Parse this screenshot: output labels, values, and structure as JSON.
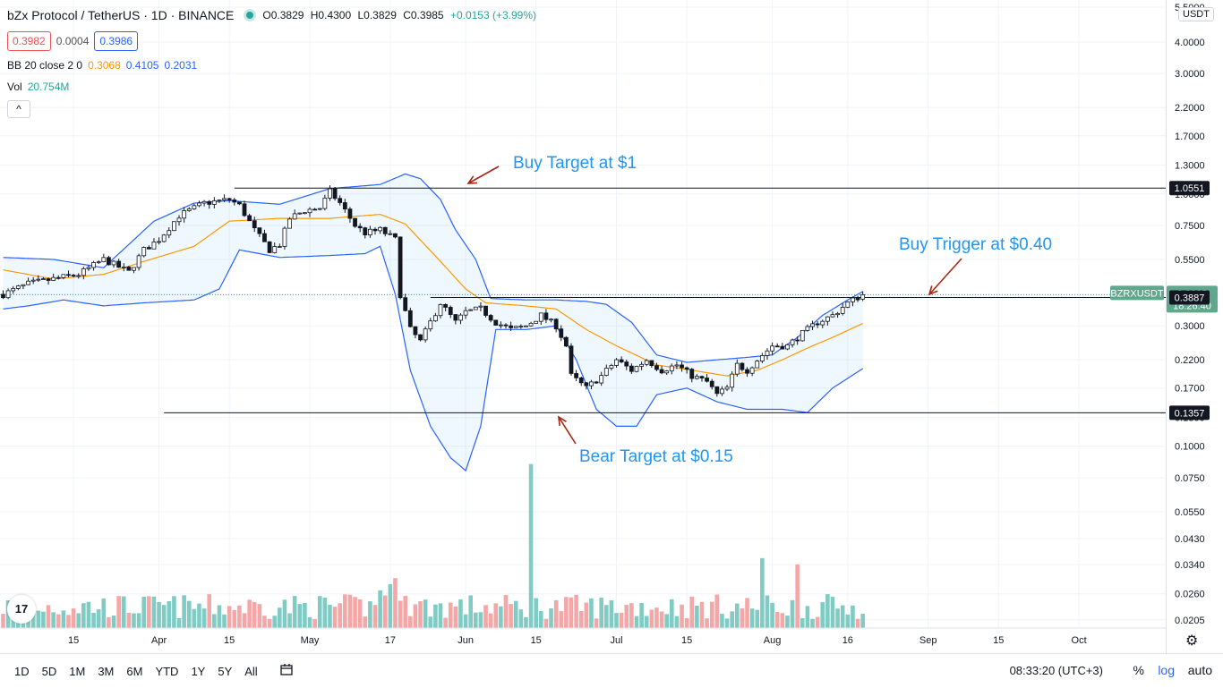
{
  "header": {
    "symbol_title": "bZx Protocol / TetherUS · 1D · BINANCE",
    "ohlc": {
      "o": "O0.3829",
      "h": "H0.4300",
      "l": "L0.3829",
      "c": "C0.3985",
      "chg": "+0.0153 (+3.99%)"
    },
    "bid": "0.3982",
    "spread": "0.0004",
    "ask": "0.3986",
    "bb_label": "BB 20 close 2 0",
    "bb_values": [
      "0.3068",
      "0.4105",
      "0.2031"
    ],
    "vol_label": "Vol",
    "vol_value": "20.754M",
    "collapse_glyph": "^"
  },
  "colors": {
    "up": "#26a69a",
    "down": "#ef5350",
    "bb_band": "#2962ff",
    "bb_basis": "#ff9800",
    "annotation_text": "#2196f3",
    "annotation_arrow": "#a52714",
    "vol_up": "#80cbc4",
    "vol_down": "#f5a6a6"
  },
  "price_axis": {
    "currency_badge": "USDT",
    "ticks": [
      "5.5000",
      "4.0000",
      "3.0000",
      "2.2000",
      "1.7000",
      "1.3000",
      "1.0000",
      "0.7500",
      "0.5500",
      "0.4000",
      "0.3000",
      "0.2200",
      "0.1700",
      "0.1300",
      "0.1000",
      "0.0750",
      "0.0550",
      "0.0430",
      "0.0340",
      "0.0260",
      "0.0205"
    ],
    "labels": [
      {
        "text": "1.0551",
        "value": 1.0551,
        "style": "dark"
      },
      {
        "text": "BZRXUSDT",
        "value": 0.3985,
        "style": "green-name"
      },
      {
        "text": "0.3985",
        "value": 0.3985,
        "style": "green"
      },
      {
        "text": "18:26:40",
        "value": 0.3985,
        "style": "green-timer"
      },
      {
        "text": "0.3887",
        "value": 0.3887,
        "style": "dark"
      },
      {
        "text": "0.1357",
        "value": 0.1357,
        "style": "dark"
      }
    ]
  },
  "time_axis": {
    "ticks": [
      {
        "label": "15",
        "day": 14
      },
      {
        "label": "Apr",
        "day": 31
      },
      {
        "label": "15",
        "day": 45
      },
      {
        "label": "May",
        "day": 61
      },
      {
        "label": "17",
        "day": 77
      },
      {
        "label": "Jun",
        "day": 92
      },
      {
        "label": "15",
        "day": 106
      },
      {
        "label": "Jul",
        "day": 122
      },
      {
        "label": "15",
        "day": 136
      },
      {
        "label": "Aug",
        "day": 153
      },
      {
        "label": "16",
        "day": 168
      },
      {
        "label": "Sep",
        "day": 184
      },
      {
        "label": "15",
        "day": 198
      },
      {
        "label": "Oct",
        "day": 214
      }
    ]
  },
  "annotations": [
    {
      "text": "Buy Target at $1"
    },
    {
      "text": "Buy Trigger at $0.40"
    },
    {
      "text": "Bear Target at $0.15"
    }
  ],
  "bottom_bar": {
    "timeframes": [
      "1D",
      "5D",
      "1M",
      "3M",
      "6M",
      "YTD",
      "1Y",
      "5Y",
      "All"
    ],
    "clock": "08:33:20 (UTC+3)",
    "percent": "%",
    "log": "log",
    "auto": "auto"
  },
  "chart_data": {
    "type": "candlestick",
    "scale": "log",
    "ylim": [
      0.0171,
      5.5
    ],
    "x_unit": "days since 2021-03-01",
    "horizontal_lines": [
      1.0551,
      0.3887,
      0.1357
    ],
    "keypoints": [
      [
        0,
        0.4
      ],
      [
        5,
        0.44
      ],
      [
        10,
        0.46
      ],
      [
        15,
        0.48
      ],
      [
        20,
        0.55
      ],
      [
        25,
        0.49
      ],
      [
        28,
        0.6
      ],
      [
        31,
        0.66
      ],
      [
        35,
        0.82
      ],
      [
        40,
        0.92
      ],
      [
        45,
        0.95
      ],
      [
        47,
        0.9
      ],
      [
        50,
        0.72
      ],
      [
        53,
        0.6
      ],
      [
        55,
        0.63
      ],
      [
        57,
        0.8
      ],
      [
        60,
        0.86
      ],
      [
        63,
        0.88
      ],
      [
        65,
        1.02
      ],
      [
        67,
        0.92
      ],
      [
        70,
        0.75
      ],
      [
        72,
        0.7
      ],
      [
        75,
        0.72
      ],
      [
        78,
        0.66
      ],
      [
        79,
        0.4
      ],
      [
        81,
        0.29
      ],
      [
        83,
        0.26
      ],
      [
        85,
        0.31
      ],
      [
        87,
        0.37
      ],
      [
        90,
        0.31
      ],
      [
        92,
        0.34
      ],
      [
        95,
        0.35
      ],
      [
        98,
        0.31
      ],
      [
        101,
        0.29
      ],
      [
        104,
        0.3
      ],
      [
        107,
        0.33
      ],
      [
        110,
        0.3
      ],
      [
        112,
        0.25
      ],
      [
        113,
        0.19
      ],
      [
        116,
        0.17
      ],
      [
        119,
        0.19
      ],
      [
        122,
        0.22
      ],
      [
        125,
        0.2
      ],
      [
        128,
        0.22
      ],
      [
        131,
        0.2
      ],
      [
        134,
        0.21
      ],
      [
        137,
        0.19
      ],
      [
        140,
        0.18
      ],
      [
        142,
        0.16
      ],
      [
        144,
        0.17
      ],
      [
        146,
        0.21
      ],
      [
        148,
        0.2
      ],
      [
        150,
        0.22
      ],
      [
        153,
        0.25
      ],
      [
        156,
        0.25
      ],
      [
        159,
        0.28
      ],
      [
        162,
        0.31
      ],
      [
        165,
        0.33
      ],
      [
        168,
        0.37
      ],
      [
        171,
        0.399
      ]
    ],
    "bb_upper": [
      [
        0,
        0.56
      ],
      [
        10,
        0.55
      ],
      [
        20,
        0.51
      ],
      [
        30,
        0.78
      ],
      [
        38,
        0.92
      ],
      [
        45,
        0.94
      ],
      [
        55,
        0.91
      ],
      [
        65,
        1.05
      ],
      [
        75,
        1.09
      ],
      [
        80,
        1.2
      ],
      [
        83,
        1.15
      ],
      [
        87,
        0.95
      ],
      [
        90,
        0.72
      ],
      [
        94,
        0.55
      ],
      [
        97,
        0.385
      ],
      [
        104,
        0.38
      ],
      [
        110,
        0.38
      ],
      [
        116,
        0.375
      ],
      [
        120,
        0.365
      ],
      [
        125,
        0.31
      ],
      [
        130,
        0.23
      ],
      [
        136,
        0.215
      ],
      [
        142,
        0.22
      ],
      [
        148,
        0.225
      ],
      [
        153,
        0.23
      ],
      [
        158,
        0.27
      ],
      [
        163,
        0.33
      ],
      [
        168,
        0.38
      ],
      [
        171,
        0.4105
      ]
    ],
    "bb_basis": [
      [
        0,
        0.5
      ],
      [
        10,
        0.46
      ],
      [
        20,
        0.48
      ],
      [
        28,
        0.54
      ],
      [
        38,
        0.62
      ],
      [
        45,
        0.78
      ],
      [
        55,
        0.8
      ],
      [
        65,
        0.8
      ],
      [
        75,
        0.83
      ],
      [
        80,
        0.76
      ],
      [
        87,
        0.54
      ],
      [
        92,
        0.42
      ],
      [
        96,
        0.37
      ],
      [
        104,
        0.36
      ],
      [
        110,
        0.35
      ],
      [
        116,
        0.29
      ],
      [
        122,
        0.25
      ],
      [
        130,
        0.21
      ],
      [
        137,
        0.2
      ],
      [
        144,
        0.19
      ],
      [
        150,
        0.2
      ],
      [
        155,
        0.22
      ],
      [
        160,
        0.245
      ],
      [
        165,
        0.27
      ],
      [
        171,
        0.3068
      ]
    ],
    "bb_lower": [
      [
        0,
        0.35
      ],
      [
        5,
        0.36
      ],
      [
        12,
        0.38
      ],
      [
        20,
        0.36
      ],
      [
        28,
        0.37
      ],
      [
        38,
        0.38
      ],
      [
        43,
        0.42
      ],
      [
        47,
        0.6
      ],
      [
        55,
        0.56
      ],
      [
        65,
        0.57
      ],
      [
        72,
        0.58
      ],
      [
        75,
        0.62
      ],
      [
        78,
        0.4
      ],
      [
        81,
        0.2
      ],
      [
        85,
        0.12
      ],
      [
        89,
        0.09
      ],
      [
        92,
        0.08
      ],
      [
        95,
        0.12
      ],
      [
        98,
        0.29
      ],
      [
        104,
        0.29
      ],
      [
        110,
        0.3
      ],
      [
        114,
        0.22
      ],
      [
        118,
        0.14
      ],
      [
        122,
        0.12
      ],
      [
        126,
        0.12
      ],
      [
        130,
        0.16
      ],
      [
        136,
        0.17
      ],
      [
        142,
        0.15
      ],
      [
        148,
        0.14
      ],
      [
        155,
        0.14
      ],
      [
        160,
        0.136
      ],
      [
        165,
        0.17
      ],
      [
        171,
        0.2031
      ]
    ],
    "volume_spikes": [
      [
        105,
        0.085
      ],
      [
        151,
        0.036
      ],
      [
        158,
        0.034
      ]
    ]
  }
}
